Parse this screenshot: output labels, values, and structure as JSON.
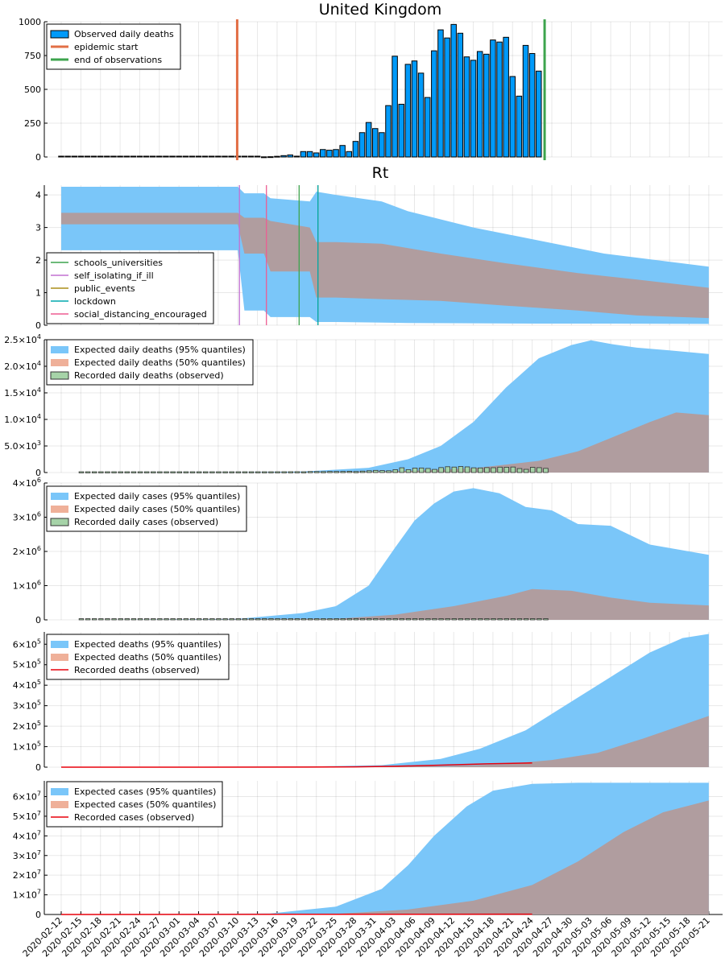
{
  "dates": [
    "2020-02-12",
    "2020-02-13",
    "2020-02-14",
    "2020-02-15",
    "2020-02-16",
    "2020-02-17",
    "2020-02-18",
    "2020-02-19",
    "2020-02-20",
    "2020-02-21",
    "2020-02-22",
    "2020-02-23",
    "2020-02-24",
    "2020-02-25",
    "2020-02-26",
    "2020-02-27",
    "2020-02-28",
    "2020-02-29",
    "2020-03-01",
    "2020-03-02",
    "2020-03-03",
    "2020-03-04",
    "2020-03-05",
    "2020-03-06",
    "2020-03-07",
    "2020-03-08",
    "2020-03-09",
    "2020-03-10",
    "2020-03-11",
    "2020-03-12",
    "2020-03-13",
    "2020-03-14",
    "2020-03-15",
    "2020-03-16",
    "2020-03-17",
    "2020-03-18",
    "2020-03-19",
    "2020-03-20",
    "2020-03-21",
    "2020-03-22",
    "2020-03-23",
    "2020-03-24",
    "2020-03-25",
    "2020-03-26",
    "2020-03-27",
    "2020-03-28",
    "2020-03-29",
    "2020-03-30",
    "2020-03-31",
    "2020-04-01",
    "2020-04-02",
    "2020-04-03",
    "2020-04-04",
    "2020-04-05",
    "2020-04-06",
    "2020-04-07",
    "2020-04-08",
    "2020-04-09",
    "2020-04-10",
    "2020-04-11",
    "2020-04-12",
    "2020-04-13",
    "2020-04-14",
    "2020-04-15",
    "2020-04-16",
    "2020-04-17",
    "2020-04-18",
    "2020-04-19",
    "2020-04-20",
    "2020-04-21",
    "2020-04-22",
    "2020-04-23",
    "2020-04-24",
    "2020-04-25",
    "2020-04-26",
    "2020-04-27",
    "2020-04-28",
    "2020-04-29",
    "2020-04-30",
    "2020-05-01",
    "2020-05-02",
    "2020-05-03",
    "2020-05-04",
    "2020-05-05",
    "2020-05-06",
    "2020-05-07",
    "2020-05-08",
    "2020-05-09",
    "2020-05-10",
    "2020-05-11",
    "2020-05-12",
    "2020-05-13",
    "2020-05-14",
    "2020-05-15",
    "2020-05-16",
    "2020-05-17",
    "2020-05-18",
    "2020-05-19",
    "2020-05-20",
    "2020-05-21"
  ],
  "x_tick_labels": [
    "2020-02-12",
    "2020-02-15",
    "2020-02-18",
    "2020-02-21",
    "2020-02-24",
    "2020-02-27",
    "2020-03-01",
    "2020-03-04",
    "2020-03-07",
    "2020-03-10",
    "2020-03-13",
    "2020-03-16",
    "2020-03-19",
    "2020-03-22",
    "2020-03-25",
    "2020-03-28",
    "2020-03-31",
    "2020-04-03",
    "2020-04-06",
    "2020-04-09",
    "2020-04-12",
    "2020-04-15",
    "2020-04-18",
    "2020-04-21",
    "2020-04-24",
    "2020-04-27",
    "2020-04-30",
    "2020-05-03",
    "2020-05-06",
    "2020-05-09",
    "2020-05-12",
    "2020-05-15",
    "2020-05-18",
    "2020-05-21"
  ],
  "colors": {
    "blue": "#009af9",
    "orange": "#e26f46",
    "green": "#3da44d",
    "purple": "#c271d2",
    "olive": "#ac8d18",
    "teal": "#00a9ad",
    "pink": "#ed5d92",
    "band95": "#7ac6f9",
    "band50": "#b09d9f",
    "obsbar": "#a6d3a8",
    "red": "#e8000b"
  },
  "chart_data": [
    {
      "id": "daily-deaths-observed",
      "type": "bar",
      "title": "United Kingdom",
      "ylim": [
        0,
        1000
      ],
      "yticks": [
        {
          "v": 0,
          "label": "0"
        },
        {
          "v": 250,
          "label": "250"
        },
        {
          "v": 500,
          "label": "500"
        },
        {
          "v": 750,
          "label": "750"
        },
        {
          "v": 1000,
          "label": "1000"
        }
      ],
      "bar_start": "2020-02-12",
      "values": [
        0,
        0,
        0,
        0,
        0,
        0,
        0,
        0,
        0,
        0,
        0,
        0,
        0,
        0,
        0,
        0,
        0,
        0,
        0,
        0,
        0,
        0,
        0,
        0,
        0,
        0,
        0,
        0,
        0,
        0,
        0,
        1,
        2,
        5,
        10,
        15,
        0,
        40,
        40,
        30,
        55,
        50,
        55,
        85,
        40,
        115,
        180,
        255,
        210,
        180,
        380,
        745,
        390,
        685,
        710,
        620,
        440,
        785,
        940,
        880,
        980,
        915,
        740,
        715,
        780,
        760,
        865,
        850,
        885,
        595,
        450,
        825,
        765,
        635
      ],
      "vlines": [
        {
          "date": "2020-03-09",
          "label": "epidemic start",
          "color": "orange"
        },
        {
          "date": "2020-04-25",
          "label": "end of observations",
          "color": "green"
        }
      ],
      "legend": [
        "Observed daily deaths",
        "epidemic start",
        "end of observations"
      ]
    },
    {
      "id": "rt",
      "type": "area",
      "title": "Rt",
      "ylim": [
        0,
        4.3
      ],
      "yticks": [
        {
          "v": 0,
          "label": "0"
        },
        {
          "v": 1,
          "label": "1"
        },
        {
          "v": 2,
          "label": "2"
        },
        {
          "v": 3,
          "label": "3"
        },
        {
          "v": 4,
          "label": "4"
        }
      ],
      "band95": {
        "x": [
          "2020-02-12",
          "2020-03-10",
          "2020-03-11",
          "2020-03-14",
          "2020-03-15",
          "2020-03-21",
          "2020-03-22",
          "2020-03-25",
          "2020-04-01",
          "2020-04-05",
          "2020-04-15",
          "2020-04-25",
          "2020-05-05",
          "2020-05-21"
        ],
        "lo": [
          2.3,
          2.3,
          0.45,
          0.45,
          0.25,
          0.25,
          0.1,
          0.1,
          0.08,
          0.07,
          0.06,
          0.05,
          0.05,
          0.04
        ],
        "hi": [
          4.25,
          4.25,
          4.05,
          4.05,
          3.9,
          3.8,
          4.1,
          4.0,
          3.8,
          3.5,
          3.0,
          2.6,
          2.2,
          1.8
        ]
      },
      "band50": {
        "x": [
          "2020-02-12",
          "2020-03-10",
          "2020-03-11",
          "2020-03-14",
          "2020-03-15",
          "2020-03-21",
          "2020-03-22",
          "2020-03-25",
          "2020-04-01",
          "2020-04-10",
          "2020-04-20",
          "2020-05-01",
          "2020-05-10",
          "2020-05-21"
        ],
        "lo": [
          3.1,
          3.1,
          2.2,
          2.2,
          1.65,
          1.65,
          0.85,
          0.85,
          0.8,
          0.75,
          0.6,
          0.45,
          0.3,
          0.22
        ],
        "hi": [
          3.45,
          3.45,
          3.3,
          3.3,
          3.2,
          3.0,
          2.55,
          2.55,
          2.5,
          2.2,
          1.9,
          1.6,
          1.4,
          1.15
        ]
      },
      "vlines": [
        {
          "date": "2020-03-11",
          "label": "schools_universities",
          "color": "green"
        },
        {
          "date": "2020-03-11",
          "label": "self_isolating_if_ill",
          "color": "purple"
        },
        {
          "date": "2020-03-23",
          "label": "public_events",
          "color": "olive"
        },
        {
          "date": "2020-03-23",
          "label": "lockdown",
          "color": "teal"
        },
        {
          "date": "2020-03-15",
          "label": "social_distancing_encouraged",
          "color": "pink"
        }
      ],
      "legend": [
        "schools_universities",
        "self_isolating_if_ill",
        "public_events",
        "lockdown",
        "social_distancing_encouraged"
      ]
    },
    {
      "id": "expected-daily-deaths",
      "type": "area",
      "ylim": [
        0,
        25000
      ],
      "yticks": [
        {
          "v": 0,
          "label": "0"
        },
        {
          "v": 5000,
          "label": "5.0×10",
          "exp": "3"
        },
        {
          "v": 10000,
          "label": "1.0×10",
          "exp": "4"
        },
        {
          "v": 15000,
          "label": "1.5×10",
          "exp": "4"
        },
        {
          "v": 20000,
          "label": "2.0×10",
          "exp": "4"
        },
        {
          "v": 25000,
          "label": "2.5×10",
          "exp": "4"
        }
      ],
      "band95": {
        "x": [
          "2020-02-20",
          "2020-03-10",
          "2020-03-20",
          "2020-03-30",
          "2020-04-05",
          "2020-04-10",
          "2020-04-15",
          "2020-04-20",
          "2020-04-25",
          "2020-04-30",
          "2020-05-03",
          "2020-05-06",
          "2020-05-10",
          "2020-05-15",
          "2020-05-21"
        ],
        "lo": [
          0,
          0,
          0,
          0,
          0,
          0,
          0,
          0,
          0,
          0,
          0,
          0,
          0,
          0,
          0
        ],
        "hi": [
          0,
          20,
          200,
          900,
          2500,
          5000,
          9500,
          16000,
          21500,
          24000,
          24900,
          24200,
          23500,
          23000,
          22300
        ]
      },
      "band50": {
        "x": [
          "2020-02-20",
          "2020-03-20",
          "2020-04-05",
          "2020-04-15",
          "2020-04-25",
          "2020-05-01",
          "2020-05-06",
          "2020-05-12",
          "2020-05-16",
          "2020-05-21"
        ],
        "lo": [
          0,
          0,
          0,
          0,
          0,
          0,
          0,
          0,
          0,
          0
        ],
        "hi": [
          0,
          20,
          300,
          800,
          2200,
          4000,
          6500,
          9500,
          11300,
          10800
        ]
      },
      "observed_bars": [
        0,
        0,
        0,
        0,
        0,
        0,
        0,
        0,
        0,
        0,
        0,
        0,
        0,
        0,
        0,
        0,
        0,
        0,
        0,
        0,
        0,
        0,
        0,
        0,
        0,
        0,
        0,
        0,
        0,
        1,
        2,
        5,
        10,
        15,
        0,
        40,
        40,
        30,
        55,
        50,
        55,
        85,
        40,
        115,
        180,
        255,
        210,
        180,
        380,
        745,
        390,
        685,
        710,
        620,
        440,
        785,
        940,
        880,
        980,
        915,
        740,
        715,
        780,
        760,
        865,
        850,
        885,
        595,
        450,
        825,
        765,
        635
      ],
      "observed_start": "2020-02-15",
      "legend": [
        "Expected daily deaths (95% quantiles)",
        "Expected daily deaths (50% quantiles)",
        "Recorded daily deaths (observed)"
      ]
    },
    {
      "id": "expected-daily-cases",
      "type": "area",
      "ylim": [
        0,
        4000000
      ],
      "yticks": [
        {
          "v": 0,
          "label": "0"
        },
        {
          "v": 1000000,
          "label": "1×10",
          "exp": "6"
        },
        {
          "v": 2000000,
          "label": "2×10",
          "exp": "6"
        },
        {
          "v": 3000000,
          "label": "3×10",
          "exp": "6"
        },
        {
          "v": 4000000,
          "label": "4×10",
          "exp": "6"
        }
      ],
      "band95": {
        "x": [
          "2020-02-20",
          "2020-03-10",
          "2020-03-20",
          "2020-03-25",
          "2020-03-30",
          "2020-04-03",
          "2020-04-06",
          "2020-04-09",
          "2020-04-12",
          "2020-04-15",
          "2020-04-19",
          "2020-04-23",
          "2020-04-27",
          "2020-05-01",
          "2020-05-06",
          "2020-05-12",
          "2020-05-21"
        ],
        "lo": [
          0,
          0,
          0,
          0,
          0,
          0,
          0,
          0,
          0,
          0,
          0,
          0,
          0,
          0,
          0,
          0,
          0
        ],
        "hi": [
          0,
          30000,
          200000,
          400000,
          1000000,
          2100000,
          2900000,
          3400000,
          3750000,
          3850000,
          3700000,
          3300000,
          3200000,
          2800000,
          2750000,
          2200000,
          1900000
        ]
      },
      "band50": {
        "x": [
          "2020-02-20",
          "2020-03-25",
          "2020-04-03",
          "2020-04-12",
          "2020-04-20",
          "2020-04-24",
          "2020-04-30",
          "2020-05-06",
          "2020-05-12",
          "2020-05-21"
        ],
        "lo": [
          0,
          0,
          0,
          0,
          0,
          0,
          0,
          0,
          0,
          0
        ],
        "hi": [
          0,
          30000,
          150000,
          400000,
          700000,
          900000,
          850000,
          650000,
          500000,
          420000
        ]
      },
      "legend": [
        "Expected daily cases (95% quantiles)",
        "Expected daily cases (50% quantiles)",
        "Recorded daily cases (observed)"
      ]
    },
    {
      "id": "expected-deaths",
      "type": "area",
      "ylim": [
        0,
        660000
      ],
      "yticks": [
        {
          "v": 0,
          "label": "0"
        },
        {
          "v": 100000,
          "label": "1×10",
          "exp": "5"
        },
        {
          "v": 200000,
          "label": "2×10",
          "exp": "5"
        },
        {
          "v": 300000,
          "label": "3×10",
          "exp": "5"
        },
        {
          "v": 400000,
          "label": "4×10",
          "exp": "5"
        },
        {
          "v": 500000,
          "label": "5×10",
          "exp": "5"
        },
        {
          "v": 600000,
          "label": "6×10",
          "exp": "5"
        }
      ],
      "band95": {
        "x": [
          "2020-02-12",
          "2020-03-20",
          "2020-04-01",
          "2020-04-10",
          "2020-04-16",
          "2020-04-23",
          "2020-04-30",
          "2020-05-06",
          "2020-05-12",
          "2020-05-17",
          "2020-05-21"
        ],
        "lo": [
          0,
          0,
          0,
          0,
          0,
          0,
          0,
          0,
          0,
          0,
          0
        ],
        "hi": [
          0,
          2000,
          10000,
          40000,
          90000,
          180000,
          320000,
          440000,
          560000,
          630000,
          650000
        ]
      },
      "band50": {
        "x": [
          "2020-02-12",
          "2020-04-10",
          "2020-04-20",
          "2020-04-27",
          "2020-05-04",
          "2020-05-11",
          "2020-05-21"
        ],
        "lo": [
          0,
          0,
          0,
          0,
          0,
          0,
          0
        ],
        "hi": [
          0,
          5000,
          15000,
          35000,
          70000,
          140000,
          250000
        ]
      },
      "recorded": {
        "x": [
          "2020-02-12",
          "2020-03-20",
          "2020-03-28",
          "2020-04-03",
          "2020-04-10",
          "2020-04-17",
          "2020-04-24"
        ],
        "y": [
          0,
          200,
          1500,
          4500,
          10000,
          16000,
          21000
        ]
      },
      "legend": [
        "Expected deaths (95% quantiles)",
        "Expected deaths (50% quantiles)",
        "Recorded deaths (observed)"
      ]
    },
    {
      "id": "expected-cases",
      "type": "area",
      "ylim": [
        0,
        68000000
      ],
      "yticks": [
        {
          "v": 0,
          "label": "0"
        },
        {
          "v": 10000000,
          "label": "1×10",
          "exp": "7"
        },
        {
          "v": 20000000,
          "label": "2×10",
          "exp": "7"
        },
        {
          "v": 30000000,
          "label": "3×10",
          "exp": "7"
        },
        {
          "v": 40000000,
          "label": "4×10",
          "exp": "7"
        },
        {
          "v": 50000000,
          "label": "5×10",
          "exp": "7"
        },
        {
          "v": 60000000,
          "label": "6×10",
          "exp": "7"
        }
      ],
      "band95": {
        "x": [
          "2020-02-12",
          "2020-03-15",
          "2020-03-25",
          "2020-04-01",
          "2020-04-05",
          "2020-04-09",
          "2020-04-14",
          "2020-04-18",
          "2020-04-24",
          "2020-05-01",
          "2020-05-21"
        ],
        "lo": [
          0,
          0,
          0,
          0,
          0,
          0,
          0,
          0,
          0,
          0,
          0
        ],
        "hi": [
          0,
          500000,
          4000000,
          13000000,
          25000000,
          40000000,
          55000000,
          63000000,
          66500000,
          67000000,
          67000000
        ]
      },
      "band50": {
        "x": [
          "2020-02-12",
          "2020-03-25",
          "2020-04-05",
          "2020-04-15",
          "2020-04-24",
          "2020-05-01",
          "2020-05-08",
          "2020-05-14",
          "2020-05-21"
        ],
        "lo": [
          0,
          0,
          0,
          0,
          0,
          0,
          0,
          0,
          0
        ],
        "hi": [
          0,
          300000,
          2500000,
          7000000,
          15000000,
          27000000,
          42000000,
          52000000,
          58000000
        ]
      },
      "recorded": {
        "x": [
          "2020-02-12",
          "2020-04-24"
        ],
        "y": [
          0,
          150000
        ]
      },
      "legend": [
        "Expected cases (95% quantiles)",
        "Expected cases (50% quantiles)",
        "Recorded cases (observed)"
      ]
    }
  ]
}
